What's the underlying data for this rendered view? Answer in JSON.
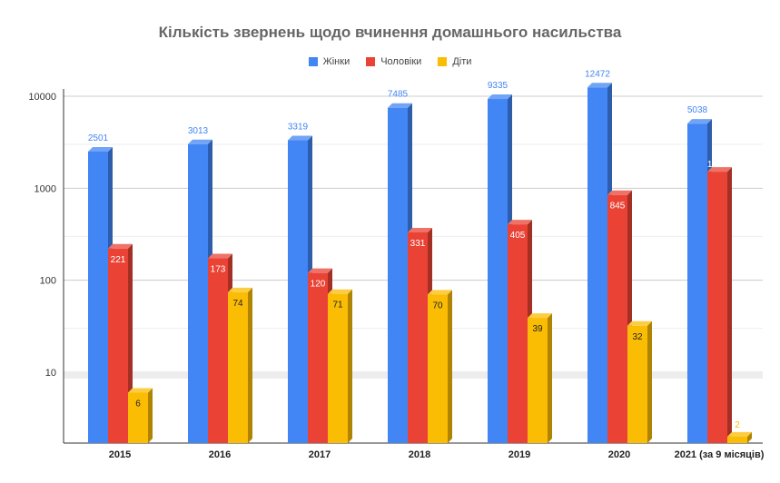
{
  "chart_data": {
    "type": "bar",
    "title": "Кількість звернень щодо вчинення домашнього насильства",
    "categories": [
      "2015",
      "2016",
      "2017",
      "2018",
      "2019",
      "2020",
      "2021 (за 9 місяців)"
    ],
    "series": [
      {
        "name": "Жінки",
        "color": "#4285F4",
        "values": [
          2501,
          3013,
          3319,
          7485,
          9335,
          12472,
          5038
        ]
      },
      {
        "name": "Чоловіки",
        "color": "#EA4335",
        "values": [
          221,
          173,
          120,
          331,
          405,
          845,
          1513
        ]
      },
      {
        "name": "Діти",
        "color": "#FBBC04",
        "values": [
          6,
          74,
          71,
          70,
          39,
          32,
          2
        ]
      }
    ],
    "y_scale": "log",
    "y_ticks": [
      "10",
      "100",
      "1000",
      "10000"
    ],
    "y_min_value": 1.6,
    "y_max_value": 20000,
    "grid": true,
    "legend_position": "top"
  }
}
